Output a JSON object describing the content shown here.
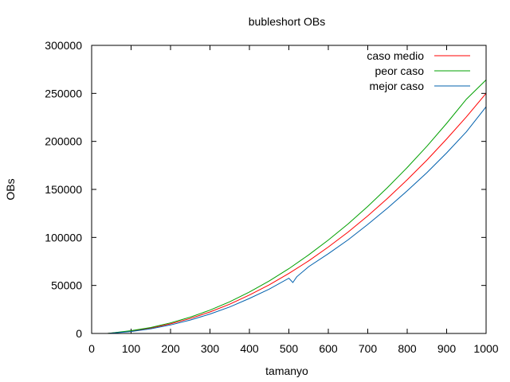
{
  "chart_data": {
    "type": "line",
    "title": "bubleshort OBs",
    "xlabel": "tamanyo",
    "ylabel": "OBs",
    "xlim": [
      0,
      1000
    ],
    "ylim": [
      0,
      300000
    ],
    "xticks": [
      0,
      100,
      200,
      300,
      400,
      500,
      600,
      700,
      800,
      900,
      1000
    ],
    "yticks": [
      0,
      50000,
      100000,
      150000,
      200000,
      250000,
      300000
    ],
    "xtick_labels": [
      "0",
      "100",
      "200",
      "300",
      "400",
      "500",
      "600",
      "700",
      "800",
      "900",
      "1000"
    ],
    "ytick_labels": [
      "0",
      "50000",
      "100000",
      "150000",
      "200000",
      "250000",
      "300000"
    ],
    "grid": false,
    "legend_position": "top-right",
    "series": [
      {
        "name": "caso medio",
        "color": "#ff0000",
        "x": [
          40,
          100,
          150,
          200,
          250,
          300,
          350,
          400,
          450,
          500,
          550,
          600,
          650,
          700,
          750,
          800,
          850,
          900,
          950,
          1000
        ],
        "y": [
          0,
          2500,
          5600,
          10000,
          15600,
          22400,
          30500,
          40000,
          50600,
          62500,
          75600,
          90000,
          105600,
          122500,
          140600,
          160000,
          180600,
          202500,
          225600,
          250000
        ]
      },
      {
        "name": "peor caso",
        "color": "#00a000",
        "x": [
          40,
          100,
          150,
          200,
          250,
          300,
          350,
          400,
          450,
          500,
          550,
          600,
          650,
          700,
          750,
          800,
          850,
          900,
          950,
          1000
        ],
        "y": [
          0,
          2900,
          6200,
          11000,
          17000,
          24300,
          33000,
          43200,
          54600,
          67500,
          81800,
          97300,
          114000,
          132300,
          152000,
          172800,
          195000,
          218800,
          244000,
          264000
        ]
      },
      {
        "name": "mejor caso",
        "color": "#0060ad",
        "x": [
          40,
          100,
          150,
          200,
          250,
          300,
          350,
          400,
          450,
          500,
          510,
          520,
          550,
          600,
          650,
          700,
          750,
          800,
          850,
          900,
          950,
          1000
        ],
        "y": [
          0,
          2000,
          4900,
          8900,
          14000,
          20200,
          27600,
          36500,
          46200,
          57500,
          53000,
          59000,
          69500,
          83000,
          97500,
          113500,
          130500,
          148500,
          167500,
          188000,
          210000,
          236000
        ]
      }
    ]
  }
}
